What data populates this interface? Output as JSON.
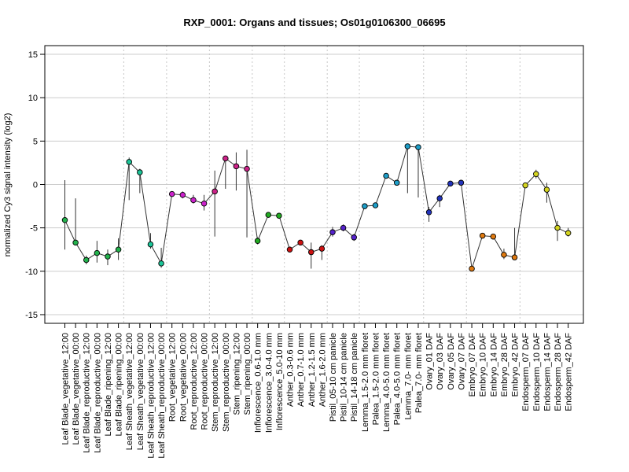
{
  "chart_data": {
    "type": "line",
    "title": "RXP_0001: Organs and tissues; Os01g0106300_06695",
    "xlabel": "",
    "ylabel": "normalized Cy3 signal intensity (log2)",
    "ylim": [
      -16,
      16
    ],
    "yticks": [
      -15,
      -10,
      -5,
      0,
      5,
      10,
      15
    ],
    "grid": true,
    "categories": [
      "Leaf Blade_vegetative_12:00",
      "Leaf Blade_vegetative_00:00",
      "Leaf Blade_reproductive_12:00",
      "Leaf Blade_reproductive_00:00",
      "Leaf Blade_ripening_12:00",
      "Leaf Blade_ripening_00:00",
      "Leaf Sheath_vegetative_12:00",
      "Leaf Sheath_vegetative_00:00",
      "Leaf Sheath_reproductive_12:00",
      "Leaf Sheath_reproductive_00:00",
      "Root_vegetative_12:00",
      "Root_vegetative_00:00",
      "Root_reproductive_12:00",
      "Root_reproductive_00:00",
      "Stem_reproductive_12:00",
      "Stem_reproductive_00:00",
      "Stem_ripening_12:00",
      "Stem_ripening_00:00",
      "Inflorescence_0.6-1.0 mm",
      "Inflorescence_3.0-4.0 mm",
      "Inflorescence_5.0-10 mm",
      "Anther_0.3-0.6 mm",
      "Anther_0.7-1.0 mm",
      "Anther_1.2-1.5 mm",
      "Anther_1.6-2.0 mm",
      "Pistil_05-10 cm panicle",
      "Pistil_10-14 cm panicle",
      "Pistil_14-18 cm panicle",
      "Lemma_1.5-2.0 mm floret",
      "Palea_1.5-2.0 mm floret",
      "Lemma_4.0-5.0 mm floret",
      "Palea_4.0-5.0 mm floret",
      "Lemma_7.0- mm floret",
      "Palea_7.0- mm floret",
      "Ovary_01 DAF",
      "Ovary_03 DAF",
      "Ovary_05 DAF",
      "Ovary_07 DAF",
      "Embryo_07 DAF",
      "Embryo_10 DAF",
      "Embryo_14 DAF",
      "Embryo_28 DAF",
      "Embryo_42 DAF",
      "Endosperm_07 DAF",
      "Endosperm_10 DAF",
      "Endosperm_14 DAF",
      "Endosperm_28 DAF",
      "Endosperm_42 DAF"
    ],
    "values": [
      -4.1,
      -6.7,
      -8.7,
      -7.9,
      -8.3,
      -7.5,
      2.6,
      1.4,
      -6.9,
      -9.1,
      -1.1,
      -1.2,
      -1.8,
      -2.2,
      -0.8,
      3.0,
      2.1,
      1.8,
      -6.5,
      -3.5,
      -3.6,
      -7.5,
      -6.7,
      -7.8,
      -7.4,
      -5.5,
      -5.0,
      -6.1,
      -2.5,
      -2.4,
      1.0,
      0.2,
      4.4,
      4.3,
      -3.2,
      -1.6,
      0.1,
      0.2,
      -9.7,
      -5.9,
      -6.0,
      -8.1,
      -8.4,
      -0.1,
      1.2,
      -0.6,
      -5.0,
      -5.6
    ],
    "error_low": [
      -7.5,
      -7.0,
      -9.2,
      -9.0,
      -9.3,
      -8.7,
      -1.8,
      -1.0,
      -7.4,
      -9.6,
      -1.3,
      -1.6,
      -2.2,
      -3.0,
      -6.0,
      -0.5,
      -0.7,
      -6.1,
      -6.9,
      -3.7,
      -3.8,
      -7.8,
      -7.0,
      -9.7,
      -8.7,
      -6.0,
      -5.4,
      -6.5,
      -2.8,
      -2.7,
      0.7,
      -0.1,
      -1.0,
      -1.5,
      -4.3,
      -2.6,
      -0.2,
      -0.1,
      -10.0,
      -6.2,
      -6.3,
      -8.6,
      -8.7,
      -0.4,
      0.7,
      -2.1,
      -6.5,
      -6.0
    ],
    "error_high": [
      0.5,
      -1.6,
      -8.2,
      -6.5,
      -7.5,
      -6.2,
      3.1,
      1.8,
      -5.6,
      -7.3,
      -0.8,
      -0.8,
      -1.2,
      -1.2,
      1.6,
      3.3,
      3.7,
      4.0,
      -6.1,
      -3.3,
      -3.4,
      -7.2,
      -6.4,
      -6.7,
      -7.0,
      -4.9,
      -4.6,
      -5.7,
      -2.2,
      -2.1,
      1.3,
      0.5,
      4.7,
      4.6,
      -2.6,
      -1.2,
      0.4,
      0.5,
      -9.4,
      -5.6,
      -5.7,
      -7.4,
      -5.0,
      0.2,
      1.7,
      0.2,
      -4.2,
      -5.0
    ],
    "colors": [
      "#22b14c",
      "#22b14c",
      "#22b14c",
      "#22b14c",
      "#22b14c",
      "#22b14c",
      "#1bc598",
      "#1bc598",
      "#1bc598",
      "#1bc598",
      "#cc22cc",
      "#cc22cc",
      "#cc22cc",
      "#cc22cc",
      "#cc2288",
      "#cc2288",
      "#cc2288",
      "#cc2288",
      "#22aa22",
      "#22aa22",
      "#22aa22",
      "#cc1111",
      "#cc1111",
      "#cc1111",
      "#cc1111",
      "#5522cc",
      "#5522cc",
      "#5522cc",
      "#1e9ec8",
      "#1e9ec8",
      "#1e9ec8",
      "#1e9ec8",
      "#1e9ec8",
      "#1e9ec8",
      "#2233bb",
      "#2233bb",
      "#2233bb",
      "#2233bb",
      "#e07a10",
      "#e07a10",
      "#e07a10",
      "#e07a10",
      "#e07a10",
      "#d4d420",
      "#d4d420",
      "#d4d420",
      "#d4d420",
      "#d4d420"
    ],
    "group_separators_after": [
      5,
      9,
      13,
      17,
      20,
      24,
      27,
      33,
      37,
      42
    ]
  }
}
